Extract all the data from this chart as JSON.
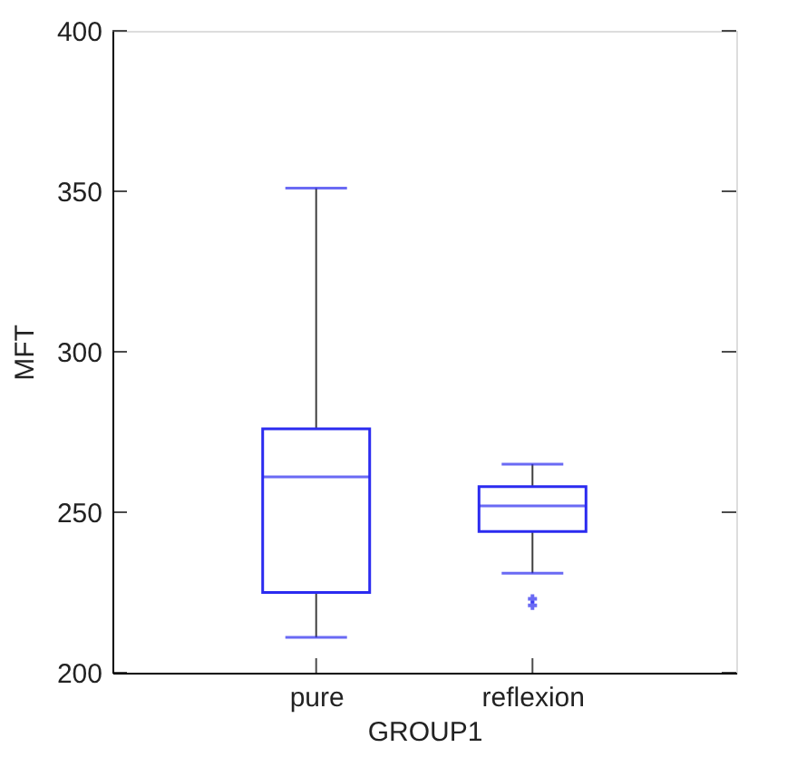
{
  "chart_data": {
    "type": "box",
    "xlabel": "GROUP1",
    "ylabel": "MFT",
    "categories": [
      "pure",
      "reflexion"
    ],
    "color": "#2b2bf0",
    "boxes": [
      {
        "low": 211,
        "q1": 225,
        "median": 261,
        "q3": 276,
        "high": 351
      },
      {
        "low": 231,
        "q1": 244,
        "median": 252,
        "q3": 258,
        "high": 265,
        "outliers": [
          223,
          221
        ]
      }
    ],
    "ylim": [
      200,
      400
    ],
    "yticks": [
      200,
      250,
      300,
      350,
      400
    ],
    "grid": false
  }
}
